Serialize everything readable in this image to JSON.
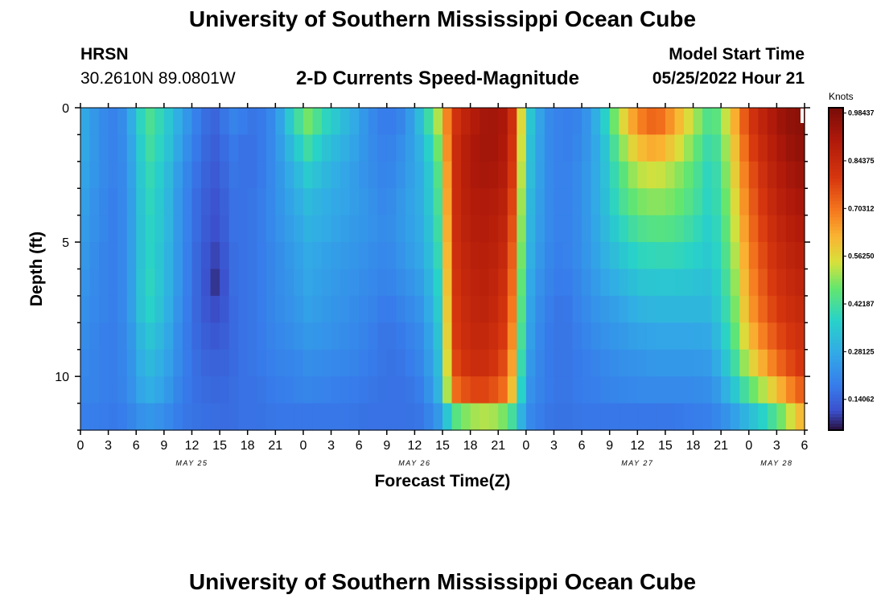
{
  "header": {
    "title": "University of Southern Mississippi Ocean Cube",
    "station": "HRSN",
    "coordinates": "30.2610N  89.0801W",
    "subtitle": "2-D Currents Speed-Magnitude",
    "model_start_label": "Model Start Time",
    "model_start_value": "05/25/2022 Hour 21"
  },
  "footer": {
    "title": "University of Southern Mississippi Ocean Cube"
  },
  "chart_data": {
    "type": "heatmap",
    "title": "2-D Currents Speed-Magnitude",
    "xlabel": "Forecast Time(Z)",
    "ylabel": "Depth (ft)",
    "x_tick_labels": [
      "0",
      "3",
      "6",
      "9",
      "12",
      "15",
      "18",
      "21",
      "0",
      "3",
      "6",
      "9",
      "12",
      "15",
      "18",
      "21",
      "0",
      "3",
      "6",
      "9",
      "12",
      "15",
      "18",
      "21",
      "0",
      "3",
      "6"
    ],
    "date_labels": [
      {
        "label": "MAY 25",
        "hour_index": 12
      },
      {
        "label": "MAY 26",
        "hour_index": 36
      },
      {
        "label": "MAY 27",
        "hour_index": 60
      },
      {
        "label": "MAY 28",
        "hour_index": 75
      }
    ],
    "xlim_hours": [
      0,
      78
    ],
    "y_ticks": [
      0,
      5,
      10
    ],
    "ylim_ft": [
      0,
      12
    ],
    "colorbar": {
      "label": "Knots",
      "ticks": [
        "0.98437",
        "0.84375",
        "0.70312",
        "0.56250",
        "0.42187",
        "0.28125",
        "0.14062"
      ],
      "range": [
        0.05,
        1.0
      ]
    },
    "depth_rows_ft": [
      0.5,
      1.5,
      2.5,
      3.5,
      4.5,
      5.5,
      6.5,
      7.5,
      8.5,
      9.5,
      10.5,
      11.5
    ],
    "time_keyframes_hours": [
      0,
      2,
      4,
      6,
      7,
      9,
      11,
      13,
      15,
      16,
      17.5,
      19,
      21,
      23,
      24.5,
      26.5,
      29,
      31,
      33,
      35,
      37,
      39,
      40,
      42,
      44,
      46,
      47,
      48,
      50,
      52,
      54,
      56,
      58,
      60,
      62,
      64,
      66,
      68,
      70,
      72,
      74,
      76,
      78
    ],
    "speed_keyframes_knots": [
      [
        0.25,
        0.18,
        0.14,
        0.28,
        0.42,
        0.34,
        0.22,
        0.12,
        0.09,
        0.16,
        0.14,
        0.12,
        0.18,
        0.36,
        0.45,
        0.35,
        0.26,
        0.18,
        0.13,
        0.17,
        0.32,
        0.55,
        0.78,
        0.88,
        0.93,
        0.9,
        0.72,
        0.35,
        0.18,
        0.14,
        0.16,
        0.28,
        0.5,
        0.66,
        0.72,
        0.62,
        0.5,
        0.38,
        0.55,
        0.78,
        0.88,
        0.95,
        0.97
      ],
      [
        0.25,
        0.18,
        0.14,
        0.26,
        0.4,
        0.33,
        0.2,
        0.11,
        0.08,
        0.14,
        0.12,
        0.12,
        0.18,
        0.3,
        0.38,
        0.3,
        0.24,
        0.18,
        0.14,
        0.19,
        0.28,
        0.5,
        0.8,
        0.9,
        0.93,
        0.89,
        0.7,
        0.33,
        0.18,
        0.14,
        0.17,
        0.26,
        0.44,
        0.58,
        0.62,
        0.55,
        0.45,
        0.35,
        0.52,
        0.75,
        0.86,
        0.93,
        0.96
      ],
      [
        0.24,
        0.18,
        0.14,
        0.25,
        0.38,
        0.31,
        0.18,
        0.1,
        0.07,
        0.13,
        0.12,
        0.12,
        0.18,
        0.26,
        0.32,
        0.27,
        0.22,
        0.18,
        0.15,
        0.2,
        0.26,
        0.46,
        0.8,
        0.9,
        0.92,
        0.88,
        0.68,
        0.32,
        0.18,
        0.14,
        0.18,
        0.26,
        0.4,
        0.5,
        0.52,
        0.48,
        0.42,
        0.33,
        0.5,
        0.72,
        0.84,
        0.91,
        0.94
      ],
      [
        0.23,
        0.17,
        0.14,
        0.24,
        0.37,
        0.3,
        0.17,
        0.09,
        0.06,
        0.12,
        0.12,
        0.13,
        0.18,
        0.24,
        0.28,
        0.25,
        0.22,
        0.19,
        0.16,
        0.21,
        0.26,
        0.44,
        0.8,
        0.89,
        0.9,
        0.86,
        0.66,
        0.3,
        0.18,
        0.14,
        0.18,
        0.26,
        0.38,
        0.45,
        0.47,
        0.45,
        0.4,
        0.33,
        0.48,
        0.7,
        0.82,
        0.89,
        0.92
      ],
      [
        0.22,
        0.17,
        0.14,
        0.24,
        0.36,
        0.3,
        0.17,
        0.09,
        0.05,
        0.12,
        0.12,
        0.13,
        0.18,
        0.22,
        0.26,
        0.24,
        0.21,
        0.19,
        0.17,
        0.21,
        0.25,
        0.42,
        0.8,
        0.88,
        0.89,
        0.84,
        0.64,
        0.29,
        0.18,
        0.14,
        0.18,
        0.25,
        0.34,
        0.4,
        0.42,
        0.41,
        0.37,
        0.32,
        0.46,
        0.68,
        0.8,
        0.87,
        0.9
      ],
      [
        0.21,
        0.16,
        0.14,
        0.24,
        0.36,
        0.29,
        0.17,
        0.08,
        0.04,
        0.11,
        0.12,
        0.13,
        0.17,
        0.21,
        0.24,
        0.22,
        0.2,
        0.18,
        0.16,
        0.2,
        0.24,
        0.4,
        0.79,
        0.87,
        0.88,
        0.82,
        0.62,
        0.28,
        0.17,
        0.14,
        0.18,
        0.24,
        0.3,
        0.35,
        0.36,
        0.36,
        0.34,
        0.31,
        0.44,
        0.66,
        0.78,
        0.85,
        0.88
      ],
      [
        0.2,
        0.16,
        0.14,
        0.24,
        0.37,
        0.29,
        0.17,
        0.08,
        0.02,
        0.11,
        0.12,
        0.13,
        0.17,
        0.2,
        0.23,
        0.21,
        0.19,
        0.17,
        0.15,
        0.18,
        0.22,
        0.38,
        0.78,
        0.86,
        0.87,
        0.8,
        0.6,
        0.26,
        0.16,
        0.13,
        0.17,
        0.22,
        0.26,
        0.3,
        0.31,
        0.31,
        0.3,
        0.29,
        0.42,
        0.64,
        0.76,
        0.83,
        0.86
      ],
      [
        0.19,
        0.16,
        0.14,
        0.24,
        0.36,
        0.28,
        0.16,
        0.08,
        0.05,
        0.1,
        0.12,
        0.13,
        0.17,
        0.19,
        0.22,
        0.2,
        0.18,
        0.16,
        0.13,
        0.16,
        0.2,
        0.36,
        0.77,
        0.85,
        0.86,
        0.78,
        0.58,
        0.25,
        0.15,
        0.12,
        0.16,
        0.2,
        0.22,
        0.26,
        0.27,
        0.27,
        0.27,
        0.27,
        0.4,
        0.62,
        0.74,
        0.81,
        0.84
      ],
      [
        0.18,
        0.15,
        0.14,
        0.22,
        0.32,
        0.26,
        0.15,
        0.09,
        0.07,
        0.1,
        0.12,
        0.13,
        0.16,
        0.18,
        0.2,
        0.19,
        0.17,
        0.15,
        0.12,
        0.14,
        0.18,
        0.34,
        0.76,
        0.84,
        0.84,
        0.76,
        0.55,
        0.24,
        0.14,
        0.12,
        0.15,
        0.18,
        0.2,
        0.22,
        0.23,
        0.23,
        0.23,
        0.24,
        0.38,
        0.58,
        0.7,
        0.78,
        0.82
      ],
      [
        0.17,
        0.15,
        0.14,
        0.21,
        0.29,
        0.24,
        0.15,
        0.1,
        0.09,
        0.1,
        0.12,
        0.13,
        0.15,
        0.16,
        0.18,
        0.17,
        0.16,
        0.14,
        0.12,
        0.13,
        0.17,
        0.32,
        0.74,
        0.82,
        0.82,
        0.73,
        0.52,
        0.22,
        0.14,
        0.12,
        0.14,
        0.16,
        0.18,
        0.19,
        0.2,
        0.2,
        0.2,
        0.21,
        0.34,
        0.52,
        0.64,
        0.74,
        0.8
      ],
      [
        0.16,
        0.15,
        0.14,
        0.2,
        0.26,
        0.22,
        0.14,
        0.11,
        0.1,
        0.11,
        0.12,
        0.12,
        0.14,
        0.15,
        0.16,
        0.15,
        0.14,
        0.13,
        0.12,
        0.12,
        0.15,
        0.3,
        0.68,
        0.76,
        0.76,
        0.68,
        0.48,
        0.2,
        0.14,
        0.12,
        0.14,
        0.15,
        0.16,
        0.17,
        0.17,
        0.17,
        0.17,
        0.18,
        0.28,
        0.42,
        0.52,
        0.64,
        0.74
      ],
      [
        0.15,
        0.14,
        0.13,
        0.17,
        0.2,
        0.18,
        0.13,
        0.12,
        0.11,
        0.11,
        0.12,
        0.12,
        0.13,
        0.13,
        0.13,
        0.13,
        0.13,
        0.12,
        0.12,
        0.12,
        0.13,
        0.22,
        0.4,
        0.48,
        0.5,
        0.44,
        0.34,
        0.18,
        0.13,
        0.12,
        0.13,
        0.13,
        0.13,
        0.13,
        0.13,
        0.13,
        0.14,
        0.15,
        0.2,
        0.28,
        0.36,
        0.48,
        0.62
      ]
    ]
  }
}
